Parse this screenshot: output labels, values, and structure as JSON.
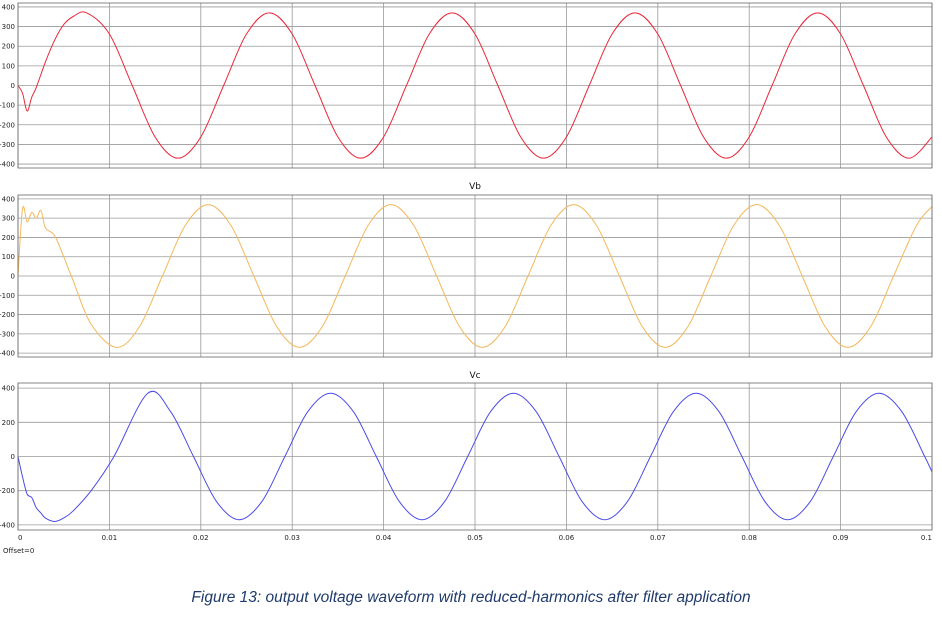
{
  "caption": "Figure 13: output voltage waveform with reduced-harmonics after filter application",
  "x_axis": {
    "ticks": [
      0,
      0.01,
      0.02,
      0.03,
      0.04,
      0.05,
      0.06,
      0.07,
      0.08,
      0.09,
      0.1
    ],
    "tick_labels": [
      "0",
      "0.01",
      "0.02",
      "0.03",
      "0.04",
      "0.05",
      "0.06",
      "0.07",
      "0.08",
      "0.09",
      "0.1"
    ],
    "offset_label": "Offset=0"
  },
  "chart_data": [
    {
      "type": "line",
      "title": "",
      "series": [
        {
          "color": "#e8283a",
          "x": [
            0,
            0.0005,
            0.001,
            0.0015,
            0.002,
            0.003,
            0.004,
            0.005,
            0.006,
            0.0075,
            0.01,
            0.0125,
            0.015,
            0.0175,
            0.02,
            0.0225,
            0.025,
            0.0275,
            0.03,
            0.0325,
            0.035,
            0.0375,
            0.04,
            0.0425,
            0.045,
            0.0475,
            0.05,
            0.0525,
            0.055,
            0.0575,
            0.06,
            0.0625,
            0.065,
            0.0675,
            0.07,
            0.0725,
            0.075,
            0.0775,
            0.08,
            0.0825,
            0.085,
            0.0875,
            0.09,
            0.0925,
            0.095,
            0.0975,
            0.1
          ],
          "y": [
            0,
            -40,
            -130,
            -60,
            -10,
            120,
            230,
            310,
            350,
            370,
            262,
            0,
            -262,
            -370,
            -262,
            0,
            262,
            370,
            262,
            0,
            -262,
            -370,
            -262,
            0,
            262,
            370,
            262,
            0,
            -262,
            -370,
            -262,
            0,
            262,
            370,
            262,
            0,
            -262,
            -370,
            -262,
            0,
            262,
            370,
            262,
            0,
            -262,
            -370,
            -262
          ]
        }
      ],
      "y_ticks": [
        -400,
        -300,
        -200,
        -100,
        0,
        100,
        200,
        300,
        400
      ],
      "ylim": [
        -420,
        420
      ],
      "xlim": [
        0,
        0.1
      ],
      "grid": true
    },
    {
      "type": "line",
      "title": "Vb",
      "series": [
        {
          "color": "#f4b85a",
          "x": [
            0,
            0.0005,
            0.001,
            0.0015,
            0.002,
            0.0025,
            0.003,
            0.004,
            0.005,
            0.006,
            0.008,
            0.0108,
            0.0133,
            0.0158,
            0.0183,
            0.0208,
            0.0233,
            0.0258,
            0.0283,
            0.0308,
            0.0333,
            0.0358,
            0.0383,
            0.0408,
            0.0433,
            0.0458,
            0.0483,
            0.0508,
            0.0533,
            0.0558,
            0.0583,
            0.0608,
            0.0633,
            0.0658,
            0.0683,
            0.0708,
            0.0733,
            0.0758,
            0.0783,
            0.0808,
            0.0833,
            0.0858,
            0.0883,
            0.0908,
            0.0933,
            0.0958,
            0.0983,
            0.1
          ],
          "y": [
            0,
            350,
            280,
            330,
            300,
            340,
            250,
            210,
            100,
            -20,
            -250,
            -370,
            -262,
            0,
            262,
            370,
            262,
            0,
            -262,
            -370,
            -262,
            0,
            262,
            370,
            262,
            0,
            -262,
            -370,
            -262,
            0,
            262,
            370,
            262,
            0,
            -262,
            -370,
            -262,
            0,
            262,
            370,
            262,
            0,
            -262,
            -370,
            -262,
            0,
            262,
            360
          ]
        }
      ],
      "y_ticks": [
        -400,
        -300,
        -200,
        -100,
        0,
        100,
        200,
        300,
        400
      ],
      "ylim": [
        -420,
        420
      ],
      "xlim": [
        0,
        0.1
      ],
      "grid": true
    },
    {
      "type": "line",
      "title": "Vc",
      "series": [
        {
          "color": "#4b4be8",
          "x": [
            0,
            0.0005,
            0.001,
            0.0015,
            0.002,
            0.0025,
            0.003,
            0.004,
            0.005,
            0.006,
            0.008,
            0.0105,
            0.0142,
            0.0167,
            0.0192,
            0.0217,
            0.0242,
            0.0267,
            0.0292,
            0.0317,
            0.0342,
            0.0367,
            0.0392,
            0.0417,
            0.0442,
            0.0467,
            0.0492,
            0.0517,
            0.0542,
            0.0567,
            0.0592,
            0.0617,
            0.0642,
            0.0667,
            0.0692,
            0.0717,
            0.0742,
            0.0767,
            0.0792,
            0.0817,
            0.0842,
            0.0867,
            0.0892,
            0.0917,
            0.0942,
            0.0967,
            0.0992,
            0.1
          ],
          "y": [
            0,
            -120,
            -220,
            -240,
            -300,
            -330,
            -360,
            -380,
            -360,
            -320,
            -200,
            0,
            370,
            262,
            0,
            -262,
            -370,
            -262,
            0,
            262,
            370,
            262,
            0,
            -262,
            -370,
            -262,
            0,
            262,
            370,
            262,
            0,
            -262,
            -370,
            -262,
            0,
            262,
            370,
            262,
            0,
            -262,
            -370,
            -262,
            0,
            262,
            370,
            262,
            0,
            -90
          ]
        }
      ],
      "y_ticks": [
        -400,
        -200,
        0,
        200,
        400
      ],
      "ylim": [
        -430,
        430
      ],
      "xlim": [
        0,
        0.1
      ],
      "grid": true
    }
  ]
}
